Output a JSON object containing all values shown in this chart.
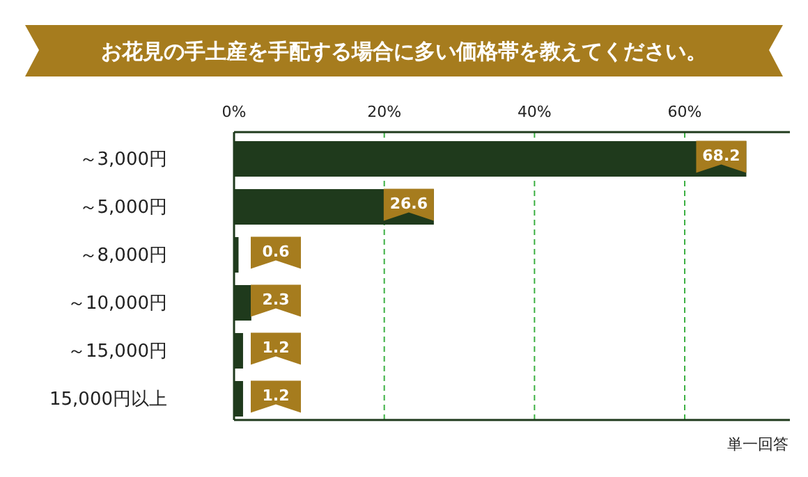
{
  "chart_data": {
    "type": "bar",
    "orientation": "horizontal",
    "title": "お花見の手土産を手配する場合に多い価格帯を教えてください。",
    "categories": [
      "～3,000円",
      "～5,000円",
      "～8,000円",
      "～10,000円",
      "～15,000円",
      "15,000円以上"
    ],
    "values": [
      68.2,
      26.6,
      0.6,
      2.3,
      1.2,
      1.2
    ],
    "color": "#1f3a1c",
    "xlim": [
      0,
      74
    ],
    "xticks": [
      {
        "value": 0,
        "label": "0%"
      },
      {
        "value": 20,
        "label": "20%"
      },
      {
        "value": 40,
        "label": "40%"
      },
      {
        "value": 60,
        "label": "60%"
      }
    ],
    "grid": "x",
    "data_labels": true,
    "annotations": [
      "単一回答"
    ]
  }
}
